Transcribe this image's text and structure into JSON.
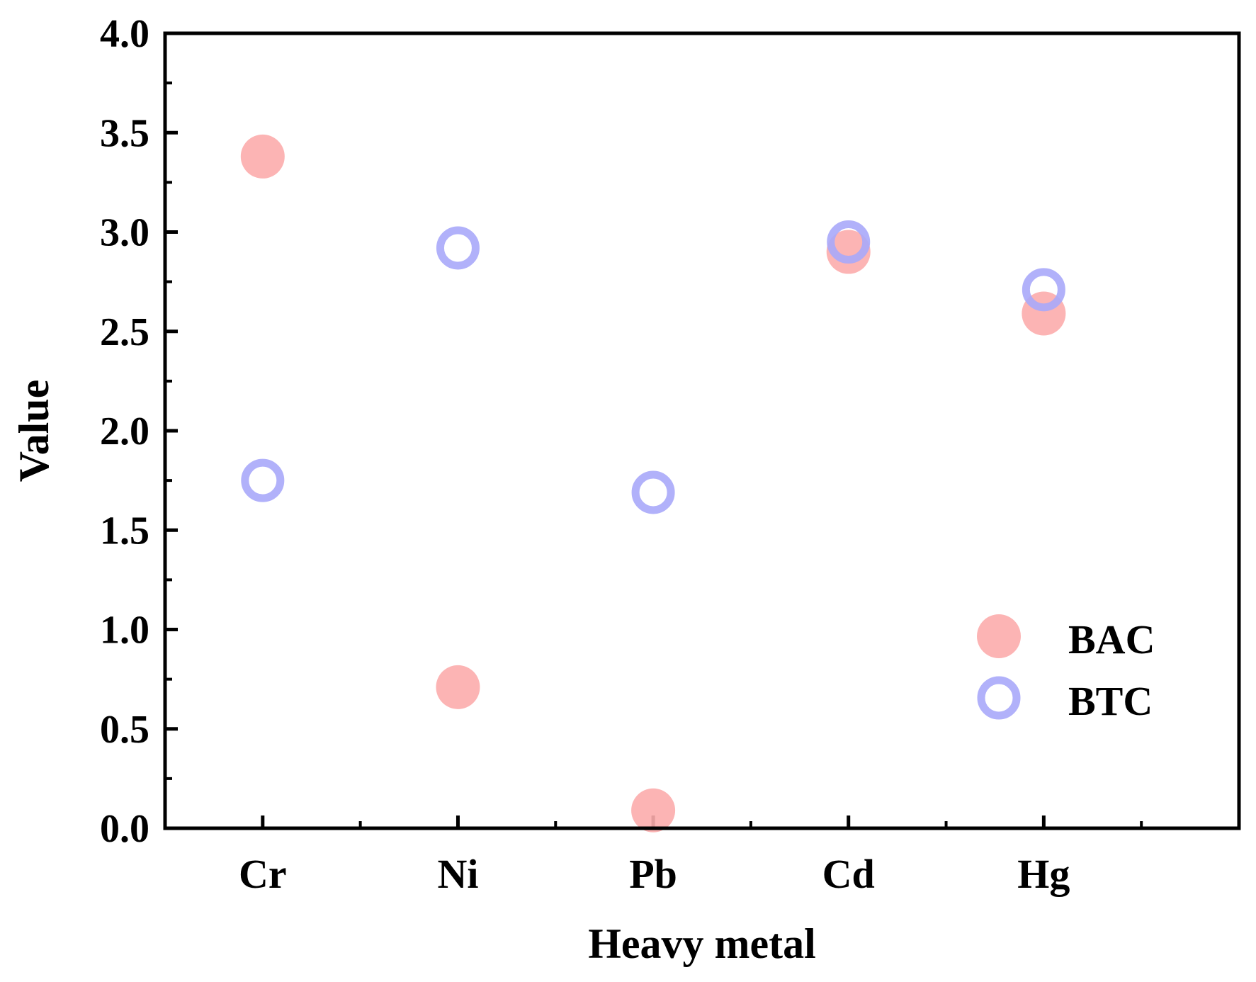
{
  "chart_data": {
    "type": "scatter",
    "categories": [
      "Cr",
      "Ni",
      "Pb",
      "Cd",
      "Hg"
    ],
    "series": [
      {
        "name": "BAC",
        "values": [
          3.38,
          0.71,
          0.09,
          2.9,
          2.59
        ],
        "marker": "filled-circle",
        "color": "#fcacac"
      },
      {
        "name": "BTC",
        "values": [
          1.75,
          2.92,
          1.69,
          2.95,
          2.71
        ],
        "marker": "hollow-circle",
        "color": "#a8a8fa"
      }
    ],
    "xlabel": "Heavy metal",
    "ylabel": "Value",
    "ylim": [
      0,
      4.0
    ],
    "yticks": [
      "0.0",
      "0.5",
      "1.0",
      "1.5",
      "2.0",
      "2.5",
      "3.0",
      "3.5",
      "4.0"
    ],
    "grid": false,
    "legend_position": "bottom-right"
  }
}
